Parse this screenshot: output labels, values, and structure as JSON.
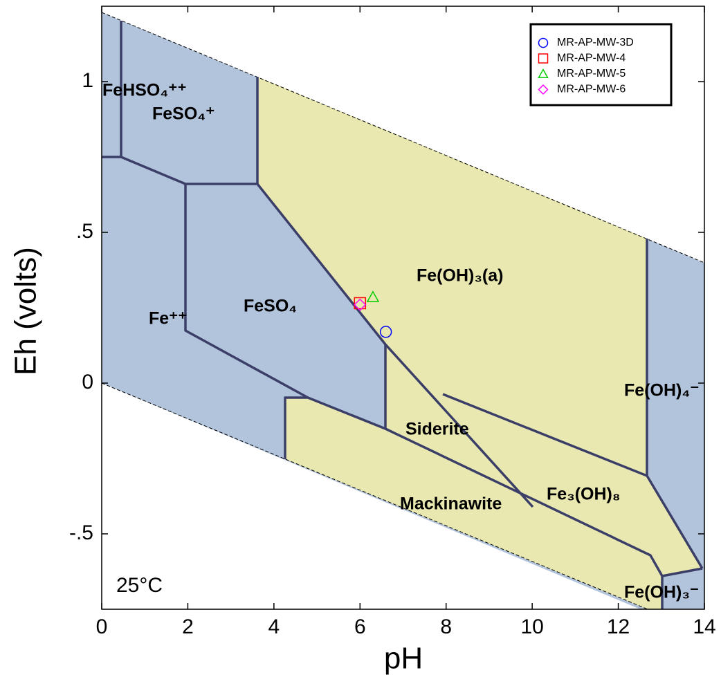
{
  "chart_data": {
    "type": "scatter",
    "x_label": "pH",
    "y_label": "Eh (volts)",
    "xlim": [
      0,
      14
    ],
    "ylim": [
      -0.75,
      1.25
    ],
    "xticks": [
      0,
      2,
      4,
      6,
      8,
      10,
      12,
      14
    ],
    "yticks": [
      {
        "value": -0.5,
        "label": "-.5"
      },
      0,
      {
        "value": 0.5,
        "label": ".5"
      },
      1
    ],
    "series": [
      {
        "name": "MR-AP-MW-3D",
        "color": "#0000ff",
        "marker": "circle",
        "x": [
          6.6
        ],
        "values": [
          0.17
        ]
      },
      {
        "name": "MR-AP-MW-4",
        "color": "#ff0000",
        "marker": "square",
        "x": [
          6.0
        ],
        "values": [
          0.265
        ]
      },
      {
        "name": "MR-AP-MW-5",
        "color": "#00cc00",
        "marker": "triangle",
        "x": [
          6.3
        ],
        "values": [
          0.285
        ]
      },
      {
        "name": "MR-AP-MW-6",
        "color": "#ff00ff",
        "marker": "diamond",
        "x": [
          6.0
        ],
        "values": [
          0.26
        ]
      }
    ],
    "annotations": [
      "FeHSO₄⁺⁺",
      "FeSO₄⁺",
      "Fe⁺⁺",
      "FeSO₄",
      "Fe(OH)₃(a)",
      "Siderite",
      "Fe₃(OH)₈",
      "Mackinawite",
      "Fe(OH)₄⁻",
      "Fe(OH)₃⁻",
      "25°C"
    ]
  }
}
